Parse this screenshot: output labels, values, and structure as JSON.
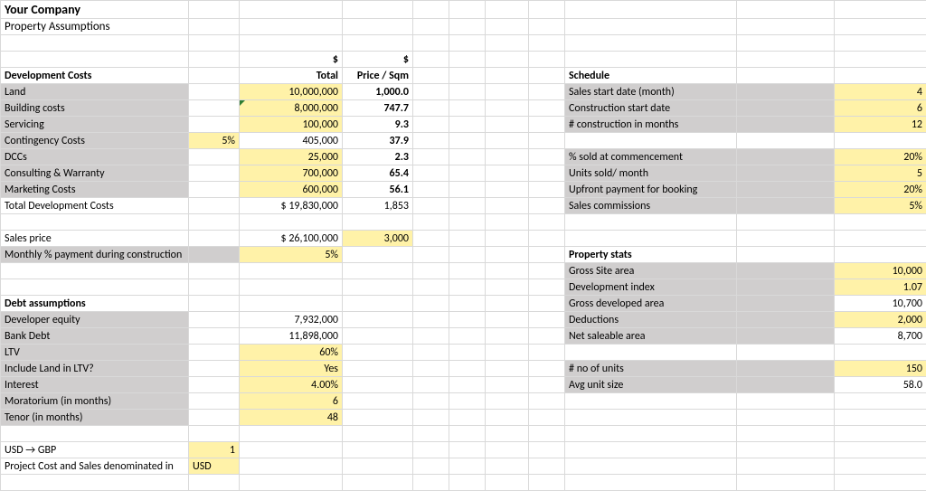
{
  "colors": {
    "label_bg": "#d0cece",
    "input_bg": "#fff2a8",
    "grid": "#d9d9d9",
    "text": "#000000",
    "tick_marker": "#2e7d32"
  },
  "typography": {
    "font_family": "Calibri, Arial, sans-serif",
    "base_size_pt": 9,
    "title_size_pt": 11
  },
  "header": {
    "company": "Your Company",
    "subtitle": "Property Assumptions"
  },
  "dev_costs": {
    "section": "Development Costs",
    "currency_symbol": "$",
    "col_total": "Total",
    "col_price_sqm": "Price / Sqm",
    "rows": {
      "land": {
        "label": "Land",
        "total": "10,000,000",
        "psqm": "1,000.0"
      },
      "building": {
        "label": "Building costs",
        "total": "8,000,000",
        "psqm": "747.7"
      },
      "servicing": {
        "label": "Servicing",
        "total": "100,000",
        "psqm": "9.3"
      },
      "contingency": {
        "label": "Contingency Costs",
        "pct": "5%",
        "total": "405,000",
        "psqm": "37.9"
      },
      "dccs": {
        "label": "DCCs",
        "total": "25,000",
        "psqm": "2.3"
      },
      "consulting": {
        "label": "Consulting & Warranty",
        "total": "700,000",
        "psqm": "65.4"
      },
      "marketing": {
        "label": "Marketing Costs",
        "total": "600,000",
        "psqm": "56.1"
      },
      "total_dev": {
        "label": "Total Development Costs",
        "total": "$  19,830,000",
        "psqm": "1,853"
      }
    },
    "sales_price": {
      "label": "Sales price",
      "total": "$  26,100,000",
      "psqm": "3,000"
    },
    "monthly_pct": {
      "label": "Monthly % payment during construction",
      "value": "5%"
    }
  },
  "debt": {
    "section": "Debt assumptions",
    "developer_equity": {
      "label": "Developer equity",
      "value": "7,932,000"
    },
    "bank_debt": {
      "label": "Bank Debt",
      "value": "11,898,000"
    },
    "ltv": {
      "label": "LTV",
      "value": "60%"
    },
    "include_land": {
      "label": "Include Land in LTV?",
      "value": "Yes"
    },
    "interest": {
      "label": "Interest",
      "value": "4.00%"
    },
    "moratorium": {
      "label": "Moratorium (in months)",
      "value": "6"
    },
    "tenor": {
      "label": "Tenor (in months)",
      "value": "48"
    },
    "fx_label": "USD → GBP",
    "fx_value": "1",
    "denom_label": "Project Cost and Sales denominated in",
    "denom_value": "USD"
  },
  "schedule": {
    "section": "Schedule",
    "sales_start": {
      "label": "Sales start date (month)",
      "value": "4"
    },
    "constr_start": {
      "label": "Construction start date",
      "value": "6"
    },
    "constr_months": {
      "label": "# construction in months",
      "value": "12"
    },
    "pct_sold": {
      "label": "% sold at commencement",
      "value": "20%"
    },
    "units_month": {
      "label": "Units sold/ month",
      "value": "5"
    },
    "upfront": {
      "label": "Upfront payment for booking",
      "value": "20%"
    },
    "commission": {
      "label": "Sales commissions",
      "value": "5%"
    }
  },
  "prop_stats": {
    "section": "Property stats",
    "gross_site": {
      "label": "Gross Site area",
      "value": "10,000"
    },
    "dev_index": {
      "label": "Development index",
      "value": "1.07"
    },
    "gross_dev": {
      "label": "Gross developed area",
      "value": "10,700"
    },
    "deductions": {
      "label": "Deductions",
      "value": "2,000"
    },
    "net_saleable": {
      "label": "Net saleable area",
      "value": "8,700"
    },
    "num_units": {
      "label": "# no of units",
      "value": "150"
    },
    "avg_unit": {
      "label": "Avg unit size",
      "value": "58.0"
    }
  }
}
